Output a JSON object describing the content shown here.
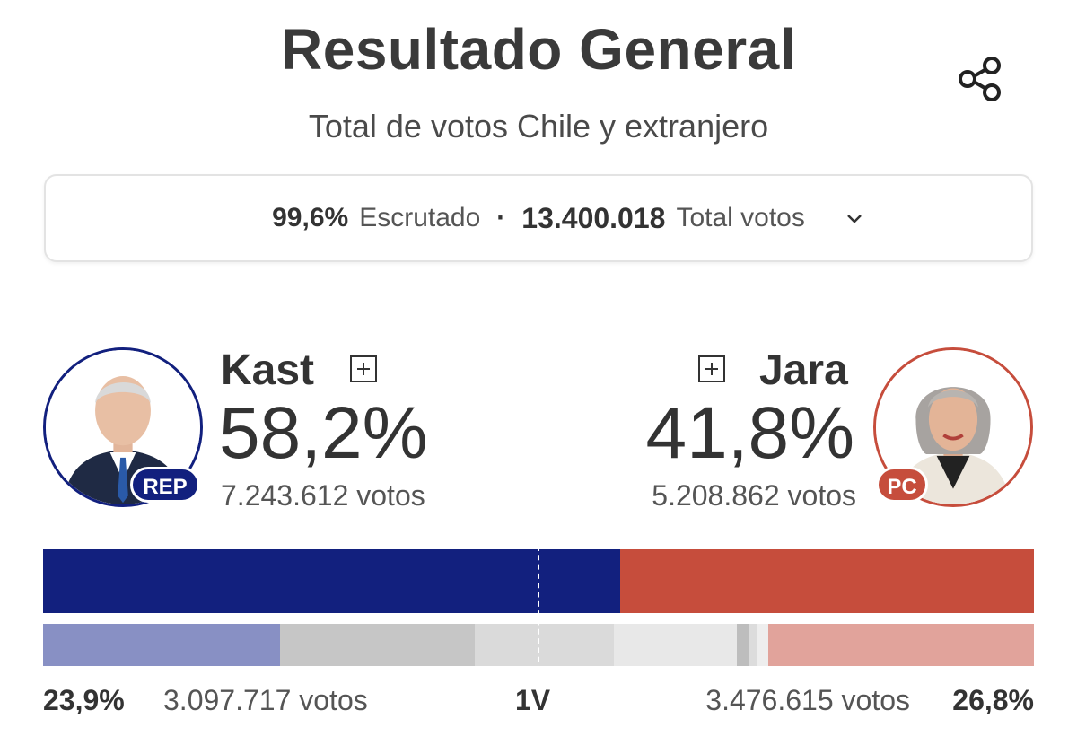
{
  "header": {
    "title": "Resultado General",
    "subtitle": "Total de votos Chile y extranjero"
  },
  "summary": {
    "scrutinized_pct": "99,6%",
    "scrutinized_label": "Escrutado",
    "separator": "·",
    "total_votes": "13.400.018",
    "total_votes_label": "Total votos"
  },
  "candidates": [
    {
      "name": "Kast",
      "party": "REP",
      "percent": "58,2%",
      "votes": "7.243.612 votos",
      "color": "#12207e",
      "share": 0.582
    },
    {
      "name": "Jara",
      "party": "PC",
      "percent": "41,8%",
      "votes": "5.208.862 votos",
      "color": "#c64d3c",
      "share": 0.418
    }
  ],
  "first_round": {
    "label": "1V",
    "kast_percent": "23,9%",
    "kast_votes": "3.097.717 votos",
    "jara_percent": "26,8%",
    "jara_votes": "3.476.615 votos",
    "segments": [
      {
        "share": 0.239,
        "color": "#8890c4"
      },
      {
        "share": 0.197,
        "color": "#c6c6c6"
      },
      {
        "share": 0.14,
        "color": "#dadada"
      },
      {
        "share": 0.124,
        "color": "#e8e8e8"
      },
      {
        "share": 0.013,
        "color": "#bdbdbd"
      },
      {
        "share": 0.008,
        "color": "#dcdcdc"
      },
      {
        "share": 0.011,
        "color": "#eeeeee"
      },
      {
        "share": 0.268,
        "color": "#e1a39b"
      }
    ]
  },
  "icons": [
    "share-icon",
    "chevron-down-icon",
    "expand-plus-icon"
  ]
}
